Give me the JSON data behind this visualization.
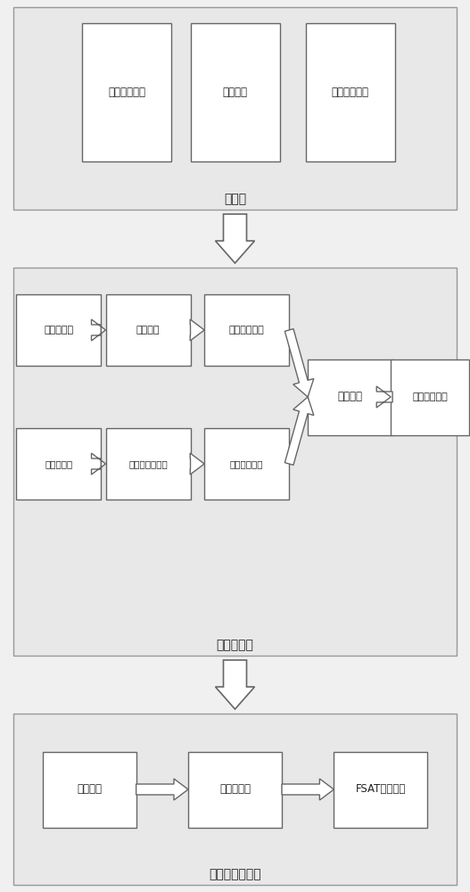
{
  "bg_color": "#f0f0f0",
  "box_fill": "#ffffff",
  "box_edge": "#666666",
  "section_edge": "#999999",
  "section_fill": "#e8e8e8",
  "arrow_color": "#444444",
  "section3_label": "交互层",
  "section3_boxes": [
    {
      "label": "人数统计显示"
    },
    {
      "label": "阀值报警"
    },
    {
      "label": "系统参数调整"
    }
  ],
  "section2_label": "核心算法层",
  "section2_top_boxes": [
    {
      "label": "低密度人群"
    },
    {
      "label": "边缘检测"
    },
    {
      "label": "目标特征向量"
    }
  ],
  "section2_bot_boxes": [
    {
      "label": "高密度人群"
    },
    {
      "label": "特征点密度聚类"
    },
    {
      "label": "聚类特征向量"
    }
  ],
  "section2_right_boxes": [
    {
      "label": "机器学习"
    },
    {
      "label": "人数评估模型"
    }
  ],
  "section1_label": "图像数据采集层",
  "section1_boxes": [
    {
      "label": "视频图像"
    },
    {
      "label": "图像预处理"
    },
    {
      "label": "FSAT角点检测"
    }
  ]
}
